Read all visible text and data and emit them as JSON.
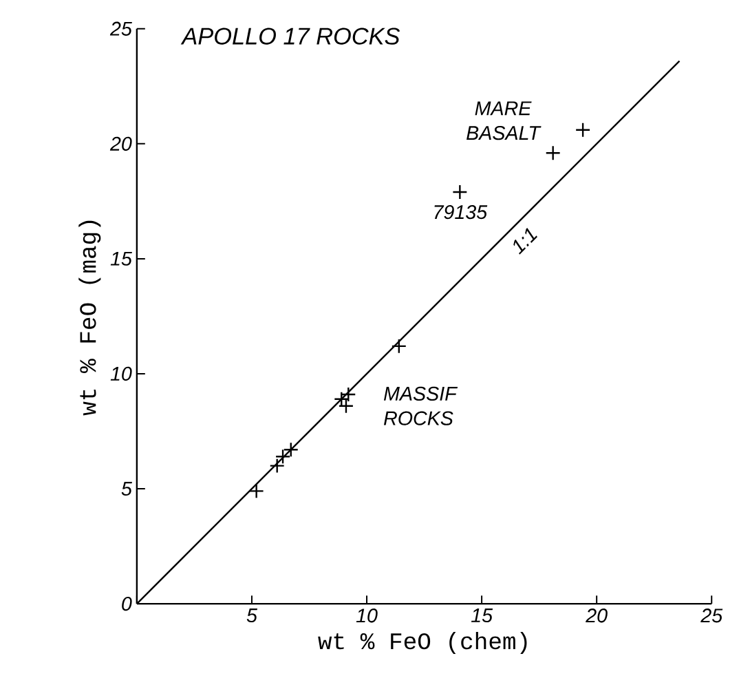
{
  "chart_data": {
    "type": "scatter",
    "title": "APOLLO 17 ROCKS",
    "xlabel": "wt % FeO (chem)",
    "ylabel": "wt % FeO (mag)",
    "xlim": [
      0,
      25
    ],
    "ylim": [
      0,
      25
    ],
    "xticks": [
      {
        "value": 0,
        "label": null
      },
      5,
      10,
      15,
      20,
      25
    ],
    "yticks": [
      0,
      5,
      10,
      15,
      20,
      25
    ],
    "grid": false,
    "marker": "cross",
    "series": [
      {
        "color": "#000000",
        "x": [
          5.2,
          6.1,
          6.35,
          6.7,
          8.9,
          9.1,
          9.2,
          11.4,
          14.05,
          18.1,
          19.4
        ],
        "values": [
          4.9,
          6.0,
          6.4,
          6.7,
          8.9,
          8.6,
          9.1,
          11.2,
          17.9,
          19.6,
          20.6
        ]
      },
      {
        "type": "line",
        "color": "#000000",
        "marker": "none",
        "line_style": "solid",
        "x": [
          0,
          23.6
        ],
        "values": [
          0,
          23.6
        ]
      }
    ],
    "annotations": [
      {
        "text": "MARE BASALT",
        "x": 18.1,
        "y": 19.6
      },
      {
        "text": "79135",
        "x": 14.05,
        "y": 17.9
      },
      {
        "text": "1:1",
        "x": 15.5,
        "y": 15.5
      },
      {
        "text": "MASSIF ROCKS",
        "x": 9.2,
        "y": 8.6
      }
    ]
  }
}
